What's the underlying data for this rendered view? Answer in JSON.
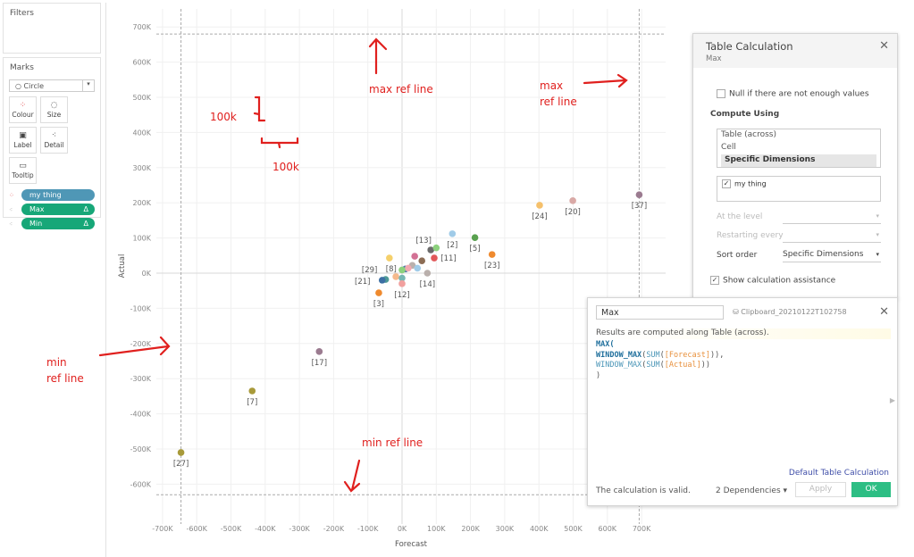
{
  "filters": {
    "title": "Filters"
  },
  "marks": {
    "title": "Marks",
    "mark_type": "Circle",
    "buttons": [
      {
        "label": "Colour",
        "icon": "colour-dots-icon"
      },
      {
        "label": "Size",
        "icon": "size-icon"
      },
      {
        "label": "Label",
        "icon": "label-icon"
      },
      {
        "label": "Detail",
        "icon": "detail-icon"
      },
      {
        "label": "Tooltip",
        "icon": "tooltip-icon"
      }
    ],
    "pills": [
      {
        "label": "my thing",
        "color": "#4f97b6",
        "delta": ""
      },
      {
        "label": "Max",
        "color": "#17a778",
        "delta": "Δ"
      },
      {
        "label": "Min",
        "color": "#17a778",
        "delta": "Δ"
      }
    ]
  },
  "chart_data": {
    "type": "scatter",
    "xlabel": "Forecast",
    "ylabel": "Actual",
    "xlim": [
      -760000,
      770000
    ],
    "ylim": [
      -710000,
      720000
    ],
    "grid": true,
    "x_ticks": [
      "-700K",
      "-600K",
      "-500K",
      "-400K",
      "-300K",
      "-200K",
      "-100K",
      "0K",
      "100K",
      "200K",
      "300K",
      "400K",
      "500K",
      "600K",
      "700K"
    ],
    "y_ticks": [
      "700K",
      "600K",
      "500K",
      "400K",
      "300K",
      "200K",
      "100K",
      "0K",
      "-100K",
      "-200K",
      "-300K",
      "-400K",
      "-500K",
      "-600K"
    ],
    "reference_lines": {
      "max_x": 693000,
      "max_y": 680000,
      "min_x": -646000,
      "min_y": -630000
    },
    "points": [
      {
        "label": "[27]",
        "x": -646000,
        "y": -510000,
        "color": "#a89a3a"
      },
      {
        "label": "[7]",
        "x": -438000,
        "y": -335000,
        "color": "#a89a3a"
      },
      {
        "label": "[17]",
        "x": -242000,
        "y": -223000,
        "color": "#9b7b90"
      },
      {
        "label": "[24]",
        "x": 402000,
        "y": 193000,
        "color": "#f5c06b"
      },
      {
        "label": "[20]",
        "x": 499000,
        "y": 206000,
        "color": "#d9a9a6"
      },
      {
        "label": "[37]",
        "x": 693000,
        "y": 223000,
        "color": "#9b7b90"
      },
      {
        "label": "[23]",
        "x": 263000,
        "y": 53000,
        "color": "#ef8a2e"
      },
      {
        "label": "[5]",
        "x": 213000,
        "y": 101000,
        "color": "#59a14f"
      },
      {
        "label": "[2]",
        "x": 147000,
        "y": 112000,
        "color": "#a0cbe8"
      },
      {
        "label": "[13]",
        "x": 84000,
        "y": 66000,
        "color": "#6b6b6b"
      },
      {
        "label": "",
        "x": 100000,
        "y": 72000,
        "color": "#8cd17d"
      },
      {
        "label": "[11]",
        "x": 94000,
        "y": 43000,
        "color": "#e15759"
      },
      {
        "label": "",
        "x": 58000,
        "y": 35000,
        "color": "#8c6d55"
      },
      {
        "label": "",
        "x": 37000,
        "y": 48000,
        "color": "#d37295"
      },
      {
        "label": "",
        "x": 30000,
        "y": 22000,
        "color": "#bab0ac"
      },
      {
        "label": "",
        "x": 45000,
        "y": 14000,
        "color": "#a0cbe8"
      },
      {
        "label": "[14]",
        "x": 74000,
        "y": 0,
        "color": "#bab0ac"
      },
      {
        "label": "",
        "x": 10000,
        "y": 12000,
        "color": "#4e79a7"
      },
      {
        "label": "",
        "x": 18000,
        "y": 14000,
        "color": "#f1a9b0"
      },
      {
        "label": "",
        "x": 0,
        "y": 9000,
        "color": "#8cd17d"
      },
      {
        "label": "[8]",
        "x": -37000,
        "y": 43000,
        "color": "#f5d06b"
      },
      {
        "label": "",
        "x": -18000,
        "y": -10000,
        "color": "#f5b98c"
      },
      {
        "label": "",
        "x": 0,
        "y": -14000,
        "color": "#76b7b2"
      },
      {
        "label": "[29]",
        "x": -48000,
        "y": -18000,
        "color": "#4e9a97"
      },
      {
        "label": "[21]",
        "x": -58000,
        "y": -20000,
        "color": "#3c6fa4"
      },
      {
        "label": "[12]",
        "x": 0,
        "y": -30000,
        "color": "#f1a09e"
      },
      {
        "label": "[3]",
        "x": -68000,
        "y": -56000,
        "color": "#ef8a2e"
      }
    ]
  },
  "annotations": {
    "max_h": "max ref line",
    "max_v_1": "max",
    "max_v_2": "ref line",
    "min_h": "min ref line",
    "min_v_1": "min",
    "min_v_2": "ref line",
    "scale_y": "100k",
    "scale_x": "100k"
  },
  "table_calc": {
    "title": "Table Calculation",
    "subtitle": "Max",
    "null_label": "Null if there are not enough values",
    "compute_using": "Compute Using",
    "options": [
      "Table (across)",
      "Cell",
      "Specific Dimensions"
    ],
    "dimension": "my thing",
    "at_level": "At the level",
    "restarting": "Restarting every",
    "sort_order_label": "Sort order",
    "sort_order_value": "Specific Dimensions",
    "assist_label": "Show calculation assistance"
  },
  "calc_editor": {
    "name": "Max",
    "datasource": "Clipboard_20210122T102758",
    "info": "Results are computed along Table (across).",
    "code": {
      "l1": "MAX(",
      "f1": "WINDOW_MAX",
      "s1": "SUM",
      "fld1": "[Forecast]",
      "f2": "WINDOW_MAX",
      "s2": "SUM",
      "fld2": "[Actual]",
      "close": ")"
    },
    "default_link": "Default Table Calculation",
    "status": "The calculation is valid.",
    "dependencies": "2 Dependencies ▾",
    "apply": "Apply",
    "ok": "OK"
  }
}
